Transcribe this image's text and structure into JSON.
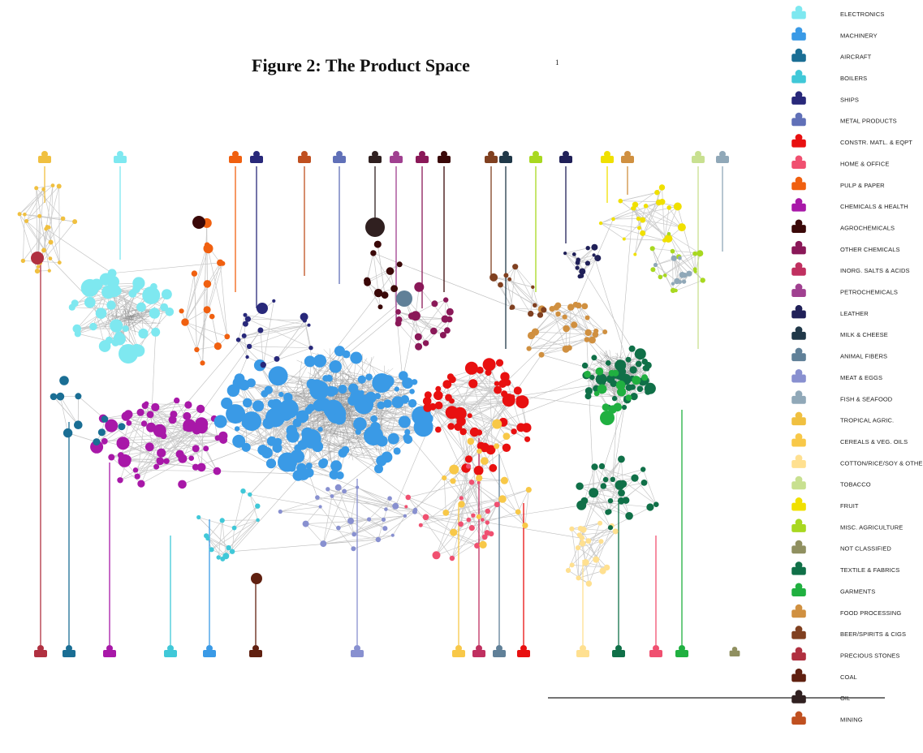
{
  "figure": {
    "title": "Figure 2: The Product Space",
    "footnote": "1"
  },
  "legend": [
    {
      "label": "ELECTRONICS",
      "color": "#7ee8f0"
    },
    {
      "label": "MACHINERY",
      "color": "#3a9ae6"
    },
    {
      "label": "AIRCRAFT",
      "color": "#1a6e94"
    },
    {
      "label": "BOILERS",
      "color": "#40c8d8"
    },
    {
      "label": "SHIPS",
      "color": "#28287a"
    },
    {
      "label": "METAL PRODUCTS",
      "color": "#6070b8"
    },
    {
      "label": "CONSTR. MATL. & EQPT",
      "color": "#e81010"
    },
    {
      "label": "HOME & OFFICE",
      "color": "#f05070"
    },
    {
      "label": "PULP & PAPER",
      "color": "#f06010"
    },
    {
      "label": "CHEMICALS & HEALTH",
      "color": "#a818a8"
    },
    {
      "label": "AGROCHEMICALS",
      "color": "#3a0808"
    },
    {
      "label": "OTHER CHEMICALS",
      "color": "#8a1858"
    },
    {
      "label": "INORG. SALTS & ACIDS",
      "color": "#c03060"
    },
    {
      "label": "PETROCHEMICALS",
      "color": "#a04090"
    },
    {
      "label": "LEATHER",
      "color": "#202058"
    },
    {
      "label": "MILK & CHEESE",
      "color": "#203848"
    },
    {
      "label": "ANIMAL FIBERS",
      "color": "#608098"
    },
    {
      "label": "MEAT & EGGS",
      "color": "#8890d0"
    },
    {
      "label": "FISH & SEAFOOD",
      "color": "#90a8b8"
    },
    {
      "label": "TROPICAL AGRIC.",
      "color": "#f0c040"
    },
    {
      "label": "CEREALS & VEG. OILS",
      "color": "#f8c848"
    },
    {
      "label": "COTTON/RICE/SOY & OTHERS",
      "color": "#ffe090"
    },
    {
      "label": "TOBACCO",
      "color": "#c8e090"
    },
    {
      "label": "FRUIT",
      "color": "#f0e000"
    },
    {
      "label": "MISC. AGRICULTURE",
      "color": "#a8d820"
    },
    {
      "label": "NOT CLASSIFIED",
      "color": "#909060"
    },
    {
      "label": "TEXTILE & FABRICS",
      "color": "#107048"
    },
    {
      "label": "GARMENTS",
      "color": "#20b040"
    },
    {
      "label": "FOOD PROCESSING",
      "color": "#d09040"
    },
    {
      "label": "BEER/SPIRITS & CIGS",
      "color": "#804020"
    },
    {
      "label": "PRECIOUS STONES",
      "color": "#b03040"
    },
    {
      "label": "COAL",
      "color": "#602010"
    },
    {
      "label": "OIL",
      "color": "#302020"
    },
    {
      "label": "MINING",
      "color": "#c05020"
    }
  ]
}
